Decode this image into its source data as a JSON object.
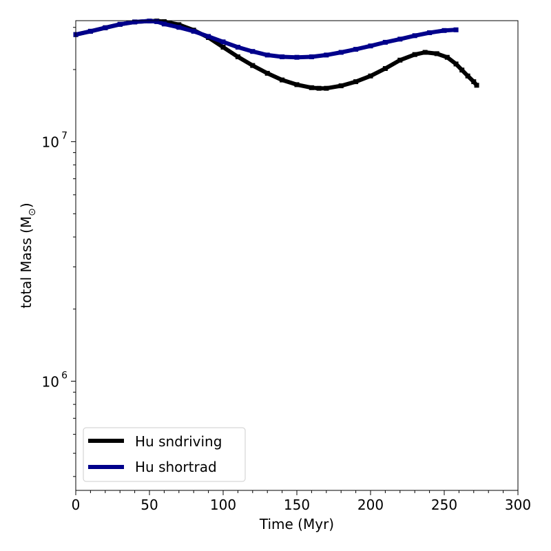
{
  "chart_data": {
    "type": "line",
    "xlabel": "Time (Myr)",
    "ylabel_prefix": "total Mass (M",
    "ylabel_sub": "⊙",
    "ylabel_suffix": ")",
    "xlim": [
      0,
      300
    ],
    "ylim": [
      350000,
      32000000
    ],
    "yscale": "log",
    "grid": false,
    "legend_position": "lower-left",
    "x_ticks": [
      0,
      50,
      100,
      150,
      200,
      250,
      300
    ],
    "x_tick_labels": [
      "0",
      "50",
      "100",
      "150",
      "200",
      "250",
      "300"
    ],
    "y_major_ticks": [
      {
        "value": 1000000,
        "base": "10",
        "exp": "6"
      },
      {
        "value": 10000000,
        "base": "10",
        "exp": "7"
      }
    ],
    "series": [
      {
        "name": "Hu sndriving",
        "color": "#000000",
        "marker": "square",
        "x": [
          0,
          10,
          20,
          30,
          40,
          50,
          55,
          60,
          70,
          80,
          90,
          100,
          110,
          120,
          130,
          140,
          150,
          160,
          165,
          170,
          180,
          190,
          200,
          210,
          220,
          230,
          237,
          245,
          252,
          258,
          262,
          266,
          270,
          272
        ],
        "y": [
          28000000,
          28900000,
          29900000,
          30900000,
          31600000,
          31900000,
          31900000,
          31700000,
          30800000,
          29200000,
          27200000,
          24800000,
          22600000,
          20800000,
          19300000,
          18100000,
          17300000,
          16800000,
          16700000,
          16700000,
          17100000,
          17800000,
          18800000,
          20200000,
          21900000,
          23100000,
          23600000,
          23300000,
          22500000,
          21100000,
          19900000,
          18800000,
          17800000,
          17200000
        ]
      },
      {
        "name": "Hu shortrad",
        "color": "#00008b",
        "marker": "square",
        "x": [
          0,
          10,
          20,
          30,
          40,
          50,
          55,
          60,
          70,
          80,
          90,
          100,
          110,
          120,
          130,
          140,
          150,
          160,
          170,
          180,
          190,
          200,
          210,
          220,
          230,
          240,
          250,
          258
        ],
        "y": [
          28000000,
          28900000,
          29900000,
          30900000,
          31600000,
          31900000,
          31700000,
          31000000,
          30000000,
          28900000,
          27500000,
          26100000,
          24800000,
          23800000,
          23000000,
          22600000,
          22500000,
          22600000,
          23000000,
          23600000,
          24300000,
          25100000,
          26000000,
          26800000,
          27700000,
          28500000,
          29100000,
          29300000
        ]
      }
    ]
  }
}
